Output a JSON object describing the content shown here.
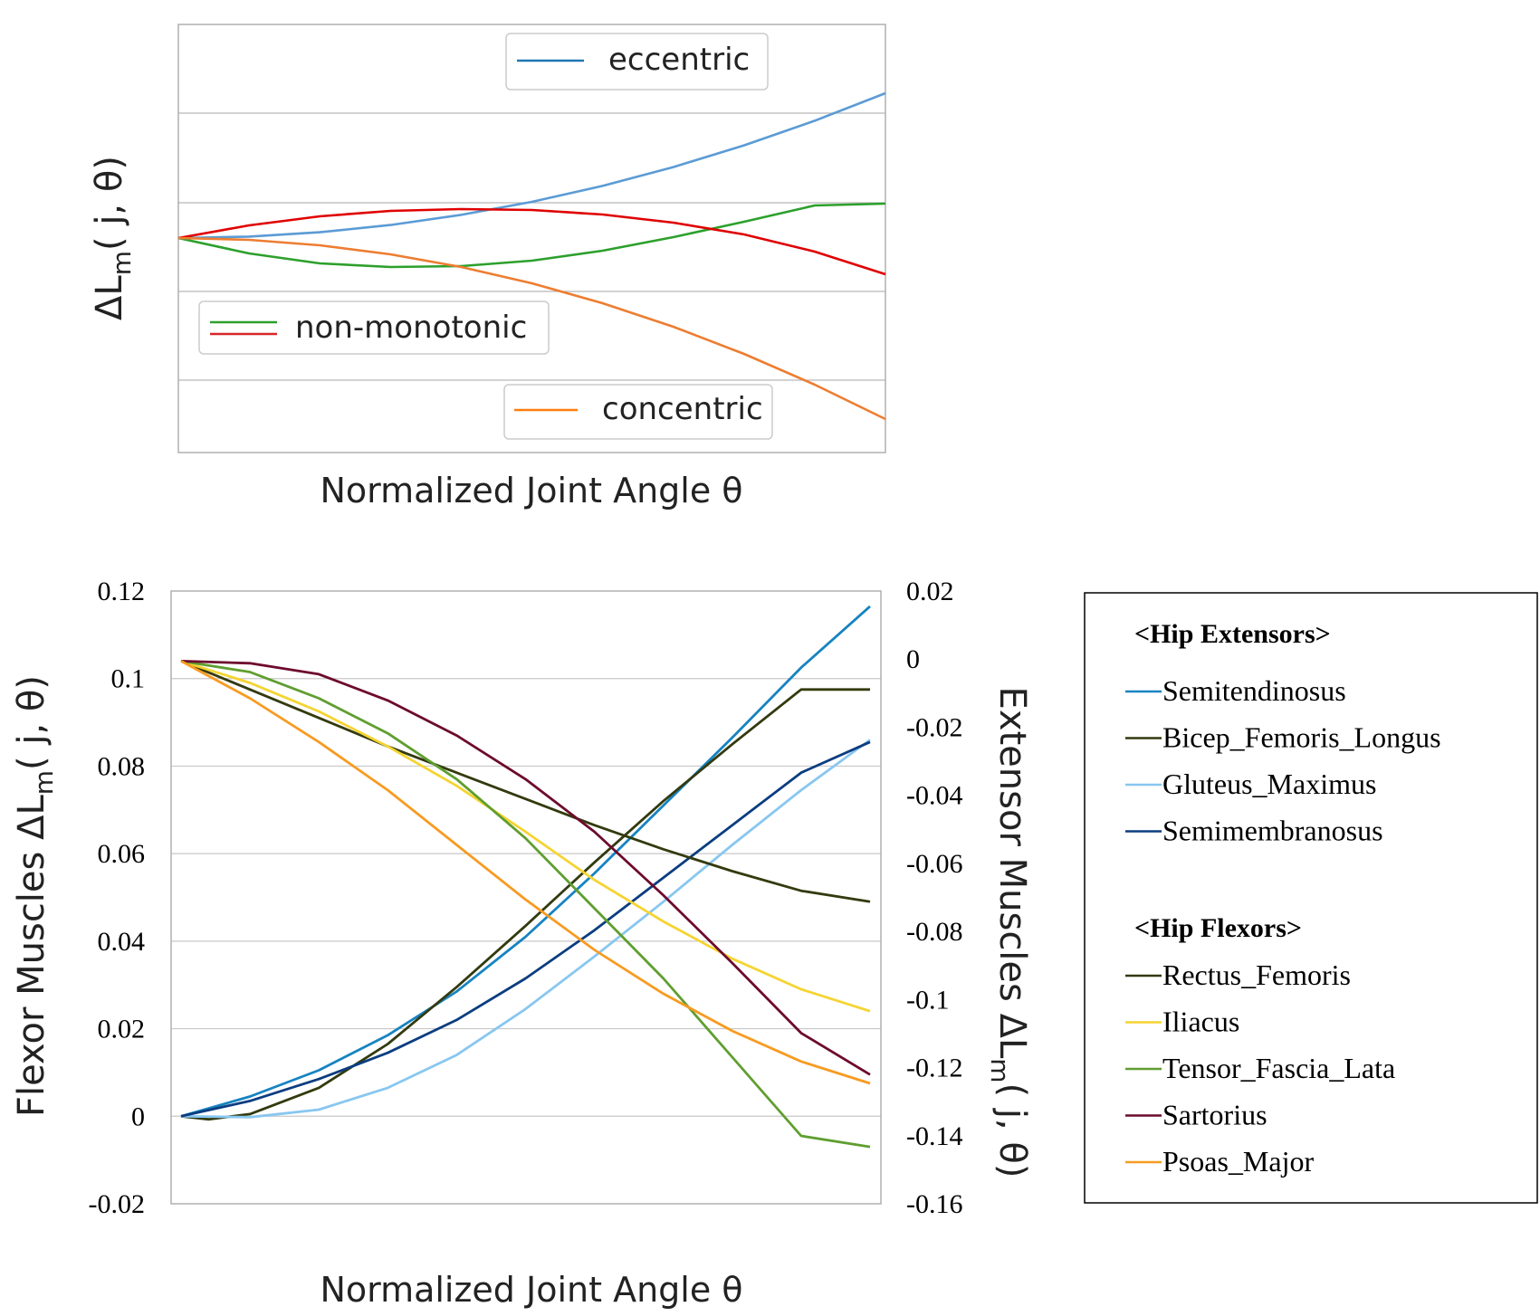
{
  "chart_data": [
    {
      "type": "line",
      "title": "",
      "xlabel": "Normalized Joint Angle θ",
      "ylabel": "ΔL_m( j, θ)",
      "xlim": [
        0,
        1
      ],
      "ylim": [
        -1.2,
        1.2
      ],
      "grid": true,
      "legends": [
        {
          "entries": [
            {
              "name": "eccentric",
              "color": "#1f77b4"
            }
          ],
          "placement": "top-right"
        },
        {
          "entries": [
            {
              "name": "non-monotonic",
              "color": "#2ca02c"
            },
            {
              "name": "non-monotonic",
              "color": "#d62728"
            }
          ],
          "placement": "lower-left"
        },
        {
          "entries": [
            {
              "name": "concentric",
              "color": "#ff7f0e"
            }
          ],
          "placement": "bottom-right"
        }
      ],
      "series": [
        {
          "color": "#5b9bd5",
          "x": [
            0,
            0.1,
            0.2,
            0.3,
            0.4,
            0.5,
            0.6,
            0.7,
            0.8,
            0.9,
            1.0
          ],
          "values": [
            0,
            0.008,
            0.032,
            0.072,
            0.128,
            0.2,
            0.288,
            0.392,
            0.512,
            0.648,
            0.8
          ]
        },
        {
          "color": "#2ca02c",
          "x": [
            0,
            0.1,
            0.2,
            0.3,
            0.4,
            0.5,
            0.6,
            0.7,
            0.8,
            0.9,
            1.0
          ],
          "values": [
            0,
            -0.085,
            -0.14,
            -0.16,
            -0.155,
            -0.125,
            -0.07,
            0.005,
            0.09,
            0.18,
            0.19
          ]
        },
        {
          "color": "#e00000",
          "x": [
            0,
            0.1,
            0.2,
            0.3,
            0.4,
            0.5,
            0.6,
            0.7,
            0.8,
            0.9,
            1.0
          ],
          "values": [
            0,
            0.07,
            0.12,
            0.15,
            0.16,
            0.155,
            0.13,
            0.085,
            0.02,
            -0.075,
            -0.2
          ]
        },
        {
          "color": "#ed7d31",
          "x": [
            0,
            0.1,
            0.2,
            0.3,
            0.4,
            0.5,
            0.6,
            0.7,
            0.8,
            0.9,
            1.0
          ],
          "values": [
            0,
            -0.01,
            -0.04,
            -0.09,
            -0.16,
            -0.25,
            -0.36,
            -0.49,
            -0.64,
            -0.81,
            -1.0
          ]
        }
      ]
    },
    {
      "type": "line",
      "title": "",
      "xlabel": "Normalized Joint Angle θ",
      "ylabel_left": "Flexor Muscles  ΔL_m( j, θ)",
      "ylabel_right": "Extensor Muscles  ΔL_m( j, θ)",
      "ylim_left": [
        -0.02,
        0.12
      ],
      "ylim_right": [
        -0.16,
        0.02
      ],
      "yticks_left": [
        "0.12",
        "0.1",
        "0.08",
        "0.06",
        "0.04",
        "0.02",
        "0",
        "-0.02"
      ],
      "yticks_right": [
        "0.02",
        "0",
        "-0.02",
        "-0.04",
        "-0.06",
        "-0.08",
        "-0.1",
        "-0.12",
        "-0.14",
        "-0.16"
      ],
      "xlim": [
        0,
        1
      ],
      "grid": true,
      "legend_placement": "right-outside",
      "legend_groups": [
        {
          "title": "<Hip Extensors>",
          "axis": "right",
          "series": [
            {
              "name": "Semitendinosus",
              "color": "#1683c1",
              "x": [
                0,
                0.1,
                0.2,
                0.3,
                0.4,
                0.5,
                0.6,
                0.7,
                0.8,
                0.9,
                1.0
              ],
              "values": [
                0,
                0.0045,
                0.0105,
                0.0185,
                0.0285,
                0.041,
                0.0555,
                0.071,
                0.0865,
                0.1025,
                0.1165
              ]
            },
            {
              "name": "Bicep_Femoris_Longus",
              "color": "#333a0e",
              "x": [
                0,
                0.04,
                0.1,
                0.2,
                0.3,
                0.4,
                0.5,
                0.6,
                0.7,
                0.8,
                0.9,
                1.0
              ],
              "values": [
                0,
                -0.0007,
                0.0005,
                0.0065,
                0.0165,
                0.0295,
                0.0435,
                0.058,
                0.072,
                0.085,
                0.0975,
                0.0975
              ]
            },
            {
              "name": "Gluteus_Maximus",
              "color": "#88c7f0",
              "x": [
                0,
                0.1,
                0.2,
                0.3,
                0.4,
                0.5,
                0.6,
                0.7,
                0.8,
                0.9,
                1.0
              ],
              "values": [
                0,
                -0.0002,
                0.0015,
                0.0065,
                0.014,
                0.0245,
                0.0365,
                0.049,
                0.062,
                0.0745,
                0.086
              ]
            },
            {
              "name": "Semimembranosus",
              "color": "#0b3d80",
              "x": [
                0,
                0.1,
                0.2,
                0.3,
                0.4,
                0.5,
                0.6,
                0.7,
                0.8,
                0.9,
                1.0
              ],
              "values": [
                0,
                0.0035,
                0.0085,
                0.0145,
                0.022,
                0.0315,
                0.0425,
                0.0545,
                0.0665,
                0.0785,
                0.0855
              ]
            }
          ]
        },
        {
          "title": "<Hip Flexors>",
          "axis": "left",
          "series": [
            {
              "name": "Rectus_Femoris",
              "color": "#333a0e",
              "x": [
                0,
                0.1,
                0.2,
                0.3,
                0.4,
                0.5,
                0.6,
                0.7,
                0.8,
                0.9,
                1.0
              ],
              "values": [
                0.104,
                0.0975,
                0.091,
                0.0845,
                0.0785,
                0.0725,
                0.0665,
                0.061,
                0.056,
                0.0515,
                0.049
              ]
            },
            {
              "name": "Iliacus",
              "color": "#f5d431",
              "x": [
                0,
                0.1,
                0.2,
                0.3,
                0.4,
                0.5,
                0.6,
                0.7,
                0.8,
                0.9,
                1.0
              ],
              "values": [
                0.104,
                0.099,
                0.0925,
                0.0845,
                0.0755,
                0.065,
                0.054,
                0.0445,
                0.036,
                0.029,
                0.024
              ]
            },
            {
              "name": "Tensor_Fascia_Lata",
              "color": "#5f9e2f",
              "x": [
                0,
                0.1,
                0.2,
                0.3,
                0.4,
                0.5,
                0.6,
                0.7,
                0.8,
                0.9,
                1.0
              ],
              "values": [
                0.104,
                0.1015,
                0.0955,
                0.0875,
                0.077,
                0.0635,
                0.0475,
                0.0315,
                0.0135,
                -0.0045,
                -0.007
              ]
            },
            {
              "name": "Sartorius",
              "color": "#6d0a2e",
              "x": [
                0,
                0.1,
                0.2,
                0.3,
                0.4,
                0.5,
                0.6,
                0.7,
                0.8,
                0.9,
                1.0
              ],
              "values": [
                0.104,
                0.1035,
                0.101,
                0.095,
                0.087,
                0.077,
                0.065,
                0.0505,
                0.035,
                0.019,
                0.0095
              ]
            },
            {
              "name": "Psoas_Major",
              "color": "#f79b22",
              "x": [
                0,
                0.1,
                0.2,
                0.3,
                0.4,
                0.5,
                0.6,
                0.7,
                0.8,
                0.9,
                1.0
              ],
              "values": [
                0.104,
                0.0955,
                0.0855,
                0.0745,
                0.062,
                0.0495,
                0.038,
                0.028,
                0.0195,
                0.0125,
                0.0075
              ]
            }
          ]
        }
      ]
    }
  ]
}
